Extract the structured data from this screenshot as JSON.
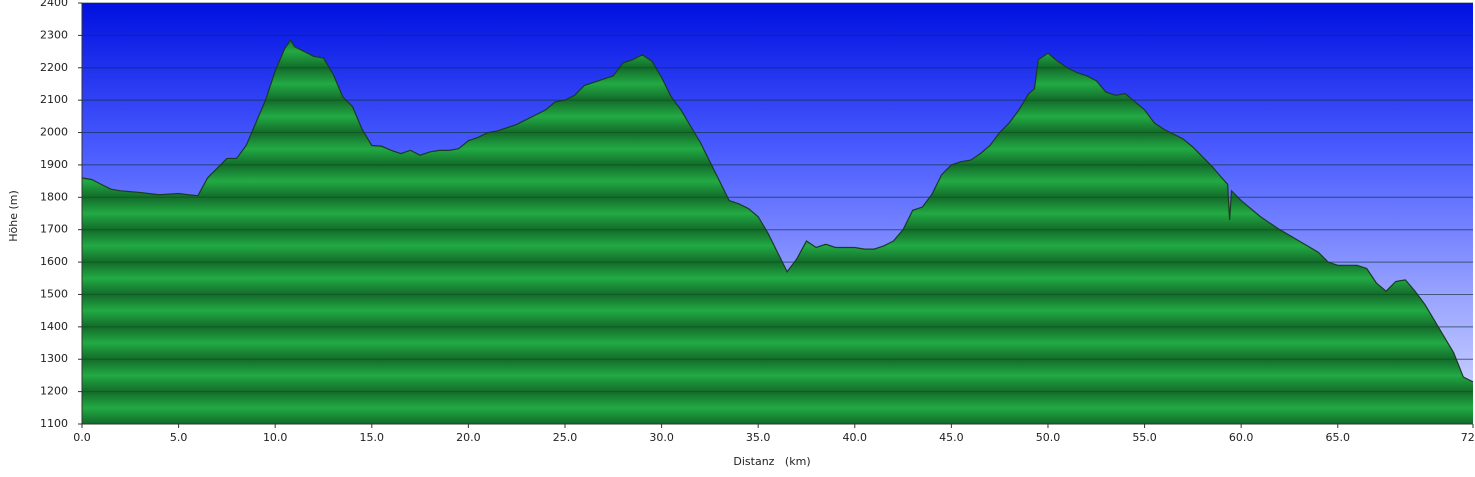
{
  "chart_data": {
    "type": "area",
    "xlabel": "Distanz   (km)",
    "ylabel": "Höhe (m)",
    "color": "#22aa44",
    "x": [
      0,
      0.5,
      1,
      1.5,
      2,
      3,
      4,
      4.5,
      5,
      5.5,
      6,
      6.5,
      7,
      7.5,
      8,
      8.5,
      9,
      9.5,
      10,
      10.5,
      10.8,
      11,
      11.5,
      12,
      12.5,
      13,
      13.5,
      14,
      14.5,
      15,
      15.5,
      16,
      16.5,
      17,
      17.5,
      18,
      18.5,
      19,
      19.5,
      20,
      20.5,
      21,
      21.5,
      22,
      22.5,
      23,
      23.5,
      24,
      24.5,
      25,
      25.5,
      26,
      26.5,
      27,
      27.5,
      28,
      28.5,
      29,
      29.5,
      30,
      30.5,
      31,
      31.5,
      32,
      32.5,
      33,
      33.5,
      34,
      34.5,
      35,
      35.5,
      36,
      36.5,
      37,
      37.5,
      38,
      38.5,
      39,
      39.5,
      40,
      40.5,
      41,
      41.5,
      42,
      42.5,
      43,
      43.5,
      44,
      44.5,
      45,
      45.5,
      46,
      46.5,
      47,
      47.5,
      48,
      48.5,
      49,
      49.3,
      49.5,
      50,
      50.5,
      51,
      51.5,
      52,
      52.5,
      53,
      53.5,
      54,
      54.5,
      55,
      55.5,
      56,
      56.5,
      57,
      57.5,
      58,
      58.5,
      59,
      59.3,
      59.4,
      59.5,
      60,
      61,
      62,
      63,
      64,
      64.5,
      65,
      66,
      66.5,
      67,
      67.5,
      68,
      68.5,
      69,
      69.5,
      70,
      70.5,
      71,
      71.5,
      72
    ],
    "values": [
      1860,
      1855,
      1840,
      1825,
      1820,
      1815,
      1808,
      1810,
      1812,
      1808,
      1805,
      1860,
      1890,
      1920,
      1920,
      1960,
      2030,
      2100,
      2190,
      2260,
      2285,
      2265,
      2250,
      2235,
      2230,
      2180,
      2110,
      2080,
      2010,
      1960,
      1958,
      1945,
      1935,
      1945,
      1930,
      1940,
      1945,
      1945,
      1950,
      1975,
      1985,
      2000,
      2005,
      2015,
      2025,
      2040,
      2055,
      2070,
      2095,
      2100,
      2115,
      2145,
      2155,
      2165,
      2175,
      2215,
      2225,
      2240,
      2220,
      2170,
      2110,
      2070,
      2020,
      1970,
      1910,
      1850,
      1790,
      1780,
      1765,
      1740,
      1690,
      1630,
      1570,
      1610,
      1665,
      1645,
      1655,
      1645,
      1645,
      1645,
      1640,
      1640,
      1650,
      1665,
      1700,
      1760,
      1770,
      1810,
      1870,
      1900,
      1910,
      1915,
      1935,
      1960,
      2000,
      2030,
      2070,
      2120,
      2135,
      2225,
      2245,
      2220,
      2200,
      2185,
      2175,
      2160,
      2125,
      2115,
      2120,
      2095,
      2070,
      2030,
      2010,
      1995,
      1980,
      1955,
      1925,
      1895,
      1860,
      1840,
      1730,
      1820,
      1790,
      1740,
      1700,
      1665,
      1630,
      1600,
      1590,
      1590,
      1580,
      1535,
      1510,
      1540,
      1545,
      1510,
      1470,
      1420,
      1370,
      1320,
      1245,
      1230
    ],
    "xlim": [
      0,
      72
    ],
    "ylim": [
      1100,
      2400
    ],
    "xticks": [
      {
        "value": 0,
        "label": "0.0"
      },
      {
        "value": 5,
        "label": "5.0"
      },
      {
        "value": 10,
        "label": "10.0"
      },
      {
        "value": 15,
        "label": "15.0"
      },
      {
        "value": 20,
        "label": "20.0"
      },
      {
        "value": 25,
        "label": "25.0"
      },
      {
        "value": 30,
        "label": "30.0"
      },
      {
        "value": 35,
        "label": "35.0"
      },
      {
        "value": 40,
        "label": "40.0"
      },
      {
        "value": 45,
        "label": "45.0"
      },
      {
        "value": 50,
        "label": "50.0"
      },
      {
        "value": 55,
        "label": "55.0"
      },
      {
        "value": 60,
        "label": "60.0"
      },
      {
        "value": 65,
        "label": "65.0"
      },
      {
        "value": 72,
        "label": "72.0"
      }
    ],
    "yticks": [
      1100,
      1200,
      1300,
      1400,
      1500,
      1600,
      1700,
      1800,
      1900,
      2000,
      2100,
      2200,
      2300,
      2400
    ],
    "grid": true
  }
}
